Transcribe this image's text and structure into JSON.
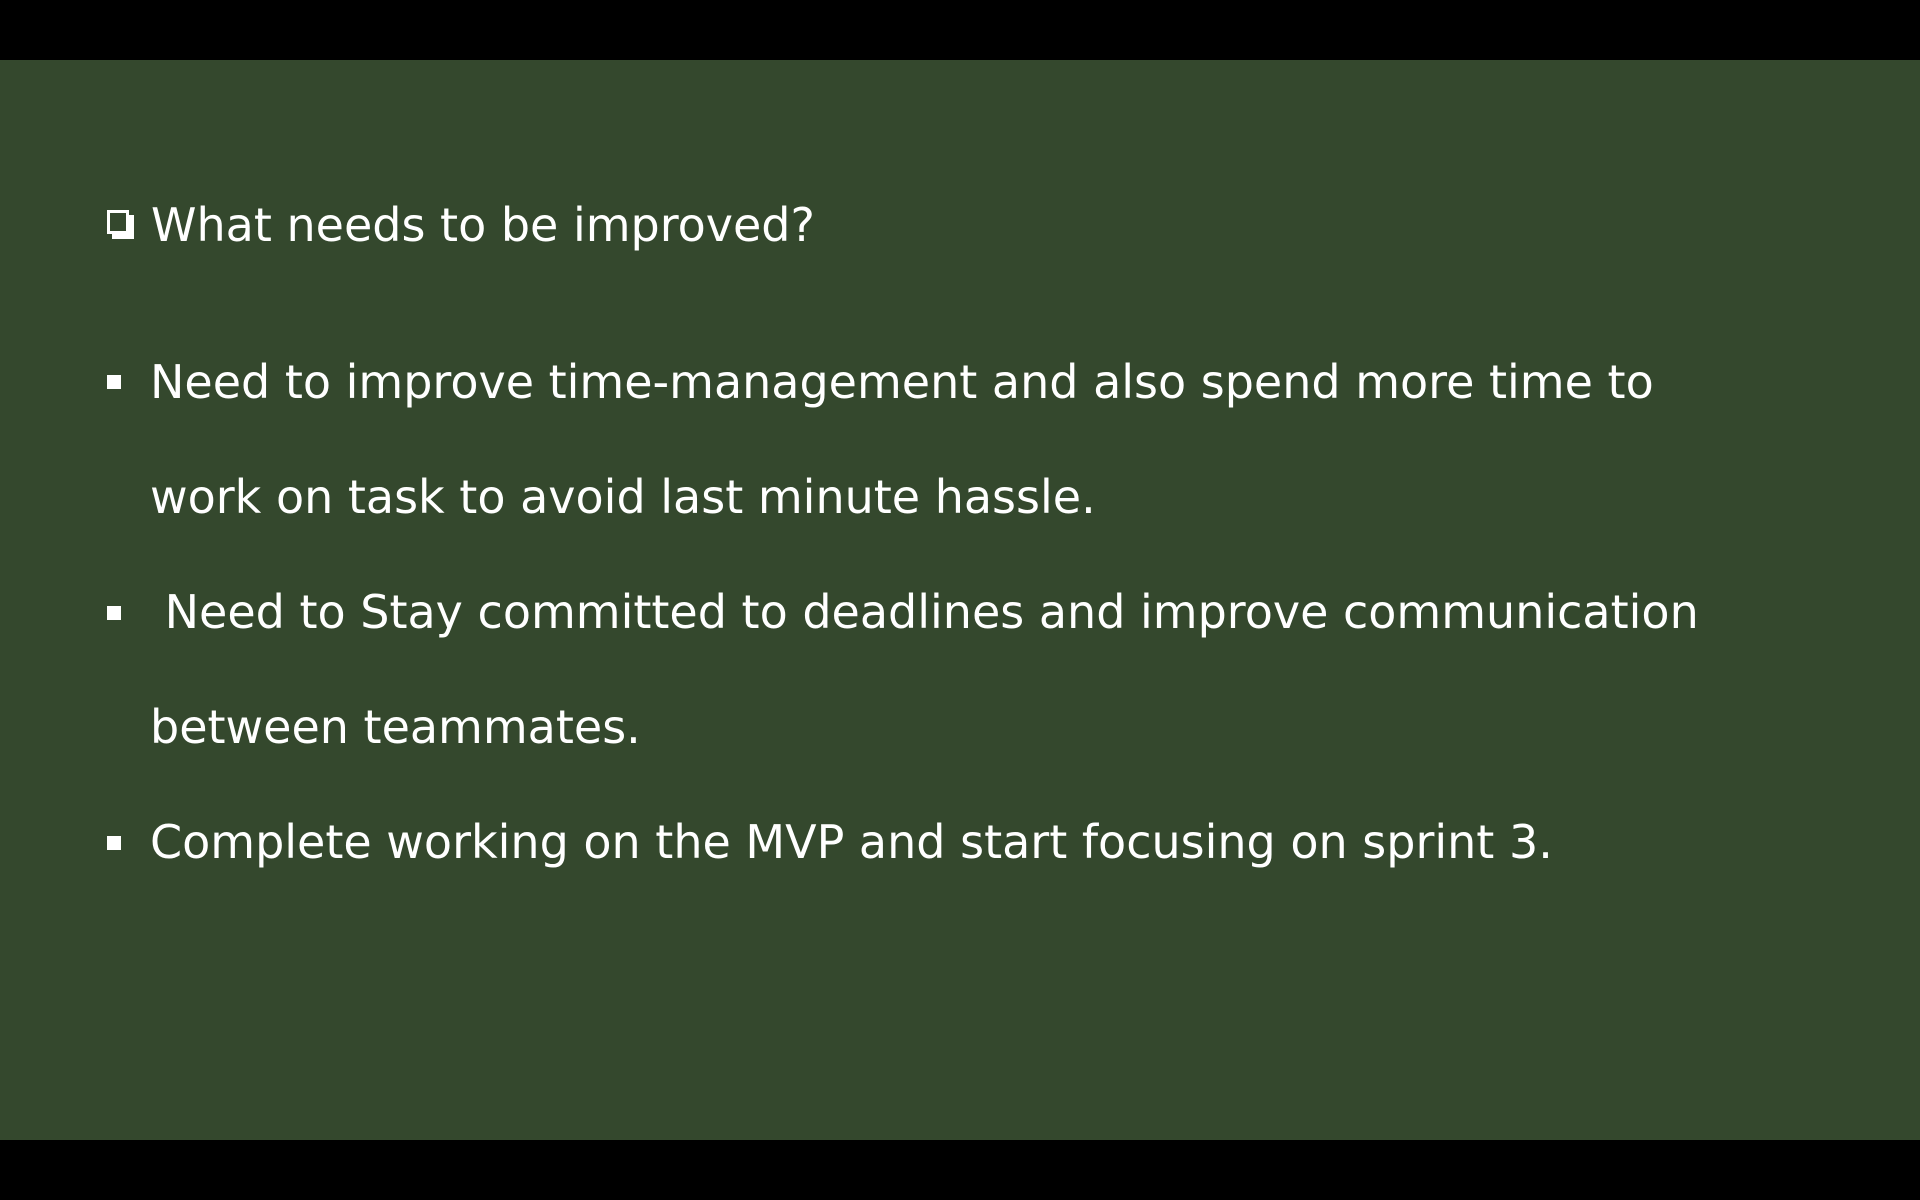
{
  "slide": {
    "background_color": "#34482d",
    "text_color": "#ffffff",
    "heading": {
      "icon": "checkbox-icon",
      "text": "What needs to be improved?"
    },
    "bullets": [
      {
        "icon": "square-bullet-icon",
        "lines": [
          "Need to improve time-management and also spend more time to",
          "work on task to avoid last minute hassle."
        ]
      },
      {
        "icon": "square-bullet-icon",
        "lines": [
          " Need to Stay committed to deadlines and improve communication",
          "between teammates."
        ]
      },
      {
        "icon": "square-bullet-icon",
        "lines": [
          "Complete working on the MVP and start focusing on sprint 3."
        ]
      }
    ]
  }
}
